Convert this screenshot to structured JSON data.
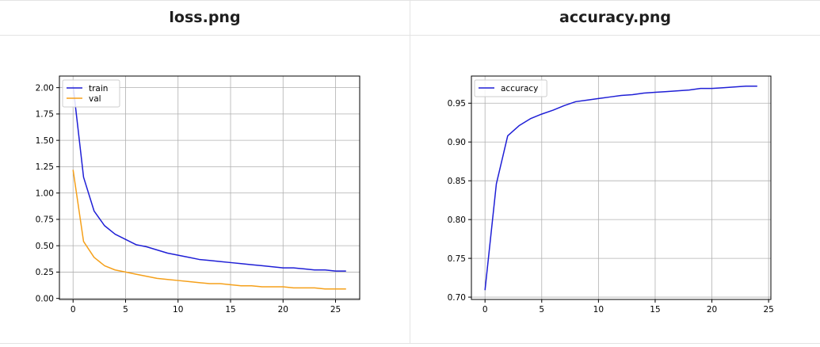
{
  "headers": [
    "loss.png",
    "accuracy.png"
  ],
  "chart_data": [
    {
      "type": "line",
      "title": "",
      "xlabel": "",
      "ylabel": "",
      "xlim": [
        -1.3,
        27.3
      ],
      "ylim": [
        -0.01,
        2.11
      ],
      "xticks": [
        0,
        5,
        10,
        15,
        20,
        25
      ],
      "yticks": [
        0.0,
        0.25,
        0.5,
        0.75,
        1.0,
        1.25,
        1.5,
        1.75,
        2.0
      ],
      "ytick_labels": [
        "0.00",
        "0.25",
        "0.50",
        "0.75",
        "1.00",
        "1.25",
        "1.50",
        "1.75",
        "2.00"
      ],
      "grid": true,
      "legend_position": "upper-left",
      "x": [
        0,
        1,
        2,
        3,
        4,
        5,
        6,
        7,
        8,
        9,
        10,
        11,
        12,
        13,
        14,
        15,
        16,
        17,
        18,
        19,
        20,
        21,
        22,
        23,
        24,
        25,
        26
      ],
      "series": [
        {
          "name": "train",
          "color": "#1f1fd6",
          "values": [
            2.02,
            1.15,
            0.83,
            0.69,
            0.61,
            0.56,
            0.51,
            0.49,
            0.46,
            0.43,
            0.41,
            0.39,
            0.37,
            0.36,
            0.35,
            0.34,
            0.33,
            0.32,
            0.31,
            0.3,
            0.29,
            0.29,
            0.28,
            0.27,
            0.27,
            0.26,
            0.26
          ]
        },
        {
          "name": "val",
          "color": "#f5a01a",
          "values": [
            1.22,
            0.54,
            0.39,
            0.31,
            0.27,
            0.25,
            0.23,
            0.21,
            0.19,
            0.18,
            0.17,
            0.16,
            0.15,
            0.14,
            0.14,
            0.13,
            0.12,
            0.12,
            0.11,
            0.11,
            0.11,
            0.1,
            0.1,
            0.1,
            0.09,
            0.09,
            0.09
          ]
        }
      ]
    },
    {
      "type": "line",
      "title": "",
      "xlabel": "",
      "ylabel": "",
      "xlim": [
        -1.2,
        25.2
      ],
      "ylim": [
        0.697,
        0.985
      ],
      "xticks": [
        0,
        5,
        10,
        15,
        20,
        25
      ],
      "yticks": [
        0.7,
        0.75,
        0.8,
        0.85,
        0.9,
        0.95
      ],
      "ytick_labels": [
        "0.70",
        "0.75",
        "0.80",
        "0.85",
        "0.90",
        "0.95"
      ],
      "grid": true,
      "legend_position": "upper-left",
      "x": [
        0,
        1,
        2,
        3,
        4,
        5,
        6,
        7,
        8,
        9,
        10,
        11,
        12,
        13,
        14,
        15,
        16,
        17,
        18,
        19,
        20,
        21,
        22,
        23,
        24
      ],
      "series": [
        {
          "name": "accuracy",
          "color": "#1f1fd6",
          "values": [
            0.709,
            0.846,
            0.908,
            0.921,
            0.93,
            0.936,
            0.941,
            0.947,
            0.952,
            0.954,
            0.956,
            0.958,
            0.96,
            0.961,
            0.963,
            0.964,
            0.965,
            0.966,
            0.967,
            0.969,
            0.969,
            0.97,
            0.971,
            0.972,
            0.972
          ]
        }
      ]
    }
  ]
}
